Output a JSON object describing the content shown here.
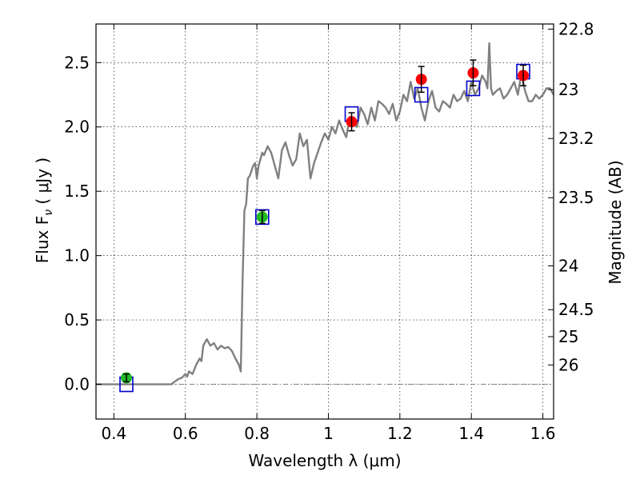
{
  "chart_data": {
    "type": "scatter",
    "xlabel": "Wavelength  λ (μm)",
    "ylabel": "Flux  F",
    "ylabel_sub": "ν",
    "ylabel_unit": " ( μJy )",
    "y2label": "Magnitude (AB)",
    "xlim": [
      0.35,
      1.63
    ],
    "ylim": [
      -0.27,
      2.8
    ],
    "grid": true,
    "x_ticks": [
      0.4,
      0.6,
      0.8,
      1.0,
      1.2,
      1.4,
      1.6
    ],
    "x_tick_labels": [
      "0.4",
      "0.6",
      "0.8",
      "1",
      "1.2",
      "1.4",
      "1.6"
    ],
    "y_ticks": [
      0.0,
      0.5,
      1.0,
      1.5,
      2.0,
      2.5
    ],
    "y_tick_labels": [
      "0.0",
      "0.5",
      "1.0",
      "1.5",
      "2.0",
      "2.5"
    ],
    "y2_ticks": [
      {
        "flux": 2.76,
        "label": "22.8"
      },
      {
        "flux": 2.29,
        "label": "23"
      },
      {
        "flux": 1.91,
        "label": "23.2"
      },
      {
        "flux": 1.45,
        "label": "23.5"
      },
      {
        "flux": 0.92,
        "label": "24"
      },
      {
        "flux": 0.58,
        "label": "24.5"
      },
      {
        "flux": 0.37,
        "label": "25"
      },
      {
        "flux": 0.15,
        "label": "26"
      }
    ],
    "colors": {
      "template": "#808080",
      "observed_optical": "#22bb22",
      "observed_nir": "#ff0000",
      "model": "#0000cc",
      "errorbar": "#000000",
      "zero_line": "#808080"
    },
    "template_spectrum": {
      "x": [
        0.35,
        0.56,
        0.57,
        0.58,
        0.59,
        0.6,
        0.605,
        0.61,
        0.62,
        0.63,
        0.64,
        0.645,
        0.65,
        0.66,
        0.67,
        0.68,
        0.69,
        0.7,
        0.71,
        0.72,
        0.73,
        0.74,
        0.75,
        0.755,
        0.76,
        0.765,
        0.77,
        0.775,
        0.78,
        0.79,
        0.795,
        0.8,
        0.805,
        0.81,
        0.815,
        0.82,
        0.83,
        0.84,
        0.85,
        0.86,
        0.87,
        0.88,
        0.89,
        0.9,
        0.91,
        0.92,
        0.93,
        0.94,
        0.95,
        0.96,
        0.97,
        0.98,
        0.99,
        1.0,
        1.01,
        1.02,
        1.03,
        1.04,
        1.05,
        1.06,
        1.07,
        1.08,
        1.09,
        1.1,
        1.11,
        1.12,
        1.13,
        1.14,
        1.15,
        1.16,
        1.17,
        1.18,
        1.19,
        1.2,
        1.21,
        1.22,
        1.23,
        1.24,
        1.25,
        1.26,
        1.27,
        1.28,
        1.29,
        1.3,
        1.31,
        1.32,
        1.33,
        1.34,
        1.35,
        1.36,
        1.37,
        1.38,
        1.39,
        1.4,
        1.41,
        1.42,
        1.43,
        1.44,
        1.445,
        1.45,
        1.455,
        1.46,
        1.47,
        1.48,
        1.49,
        1.5,
        1.51,
        1.52,
        1.53,
        1.54,
        1.55,
        1.56,
        1.57,
        1.58,
        1.59,
        1.6,
        1.61,
        1.62,
        1.63
      ],
      "y": [
        0.0,
        0.0,
        0.02,
        0.04,
        0.05,
        0.08,
        0.06,
        0.1,
        0.08,
        0.15,
        0.2,
        0.18,
        0.3,
        0.35,
        0.3,
        0.32,
        0.27,
        0.3,
        0.28,
        0.29,
        0.26,
        0.2,
        0.15,
        0.1,
        0.8,
        1.35,
        1.4,
        1.6,
        1.62,
        1.7,
        1.72,
        1.6,
        1.7,
        1.75,
        1.8,
        1.78,
        1.85,
        1.8,
        1.7,
        1.6,
        1.82,
        1.88,
        1.78,
        1.7,
        1.75,
        1.95,
        1.85,
        1.9,
        1.6,
        1.72,
        1.8,
        1.88,
        1.95,
        1.9,
        2.0,
        1.95,
        2.05,
        1.98,
        1.92,
        2.08,
        2.05,
        2.0,
        2.15,
        2.1,
        2.02,
        2.15,
        2.05,
        2.2,
        2.18,
        2.15,
        2.1,
        2.18,
        2.05,
        2.12,
        2.25,
        2.2,
        2.35,
        2.22,
        2.3,
        2.15,
        2.05,
        2.2,
        2.28,
        2.15,
        2.12,
        2.2,
        2.18,
        2.15,
        2.25,
        2.2,
        2.22,
        2.28,
        2.2,
        2.35,
        2.25,
        2.3,
        2.4,
        2.35,
        2.3,
        2.65,
        2.3,
        2.25,
        2.28,
        2.3,
        2.22,
        2.25,
        2.3,
        2.35,
        2.25,
        2.42,
        2.28,
        2.2,
        2.2,
        2.25,
        2.22,
        2.25,
        2.3,
        2.3,
        2.25
      ],
      "zero_line": 0.0
    },
    "observed_optical": {
      "x": [
        0.435,
        0.815
      ],
      "y": [
        0.05,
        1.3
      ],
      "yerr": [
        0.03,
        0.05
      ]
    },
    "observed_nir": {
      "x": [
        1.065,
        1.26,
        1.405,
        1.545
      ],
      "y": [
        2.04,
        2.37,
        2.42,
        2.4
      ],
      "yerr": [
        0.07,
        0.1,
        0.1,
        0.08
      ]
    },
    "model_photometry": {
      "x": [
        0.435,
        0.815,
        1.065,
        1.26,
        1.405,
        1.545
      ],
      "y": [
        0.0,
        1.3,
        2.1,
        2.25,
        2.3,
        2.43
      ]
    }
  }
}
